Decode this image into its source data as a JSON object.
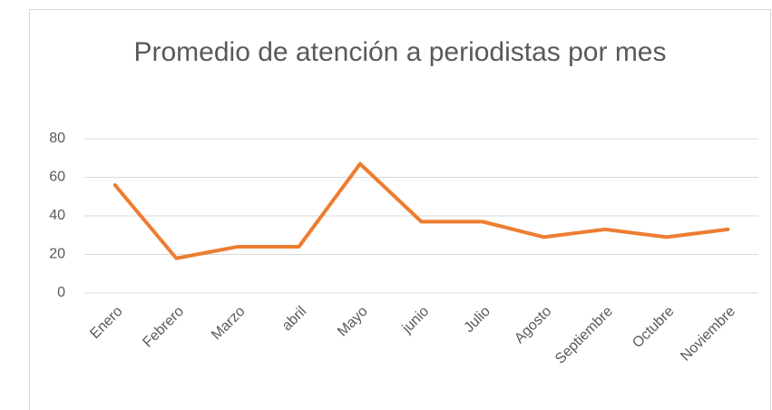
{
  "chart_data": {
    "type": "line",
    "title": "Promedio de atención a periodistas por mes",
    "categories": [
      "Enero",
      "Febrero",
      "Marzo",
      "abril",
      "Mayo",
      "junio",
      "Julio",
      "Agosto",
      "Septiembre",
      "Octubre",
      "Noviembre"
    ],
    "series": [
      {
        "name": "Promedio",
        "color": "#ed7d31",
        "values": [
          56,
          18,
          24,
          24,
          67,
          37,
          37,
          29,
          33,
          29,
          33
        ]
      }
    ],
    "ylim": [
      0,
      80
    ],
    "yticks": [
      0,
      20,
      40,
      60,
      80
    ],
    "grid": true
  }
}
